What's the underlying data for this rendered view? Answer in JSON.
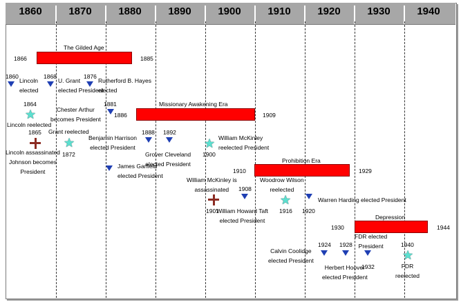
{
  "decades": [
    "1860",
    "1870",
    "1880",
    "1890",
    "1900",
    "1910",
    "1920",
    "1930",
    "1940"
  ],
  "eras": [
    {
      "title": "The Gilded Age",
      "start": "1866",
      "end": "1885"
    },
    {
      "title": "Missionary Awakening Era",
      "start": "1886",
      "end": "1909"
    },
    {
      "title": "Prohibition Era",
      "start": "1910",
      "end": "1929"
    },
    {
      "title": "Depression",
      "start": "1930",
      "end": "1944"
    }
  ],
  "events": {
    "lincoln_elected": {
      "year": "1860",
      "label": "Lincoln\nelected"
    },
    "grant_elected": {
      "year": "1868",
      "label": "U. Grant\nelected President"
    },
    "hayes_elected": {
      "year": "1876",
      "label": "Rutherford B. Hayes\nelected"
    },
    "lincoln_reelected": {
      "year": "1864",
      "label": "Lincoln reelected"
    },
    "arthur": {
      "year": "1881",
      "label": "Chester Arthur\nbecomes President"
    },
    "lincoln_assassinated": {
      "year": "1865",
      "label": "Lincoln assassinated\nJohnson becomes\nPresident"
    },
    "grant_reelected": {
      "year": "1872",
      "label": "Grant reelected"
    },
    "harrison": {
      "year": "1888",
      "label": "Benjamin Harrison\nelected President"
    },
    "cleveland": {
      "year": "1892",
      "label": "Grover Cleveland\nelected President"
    },
    "mckinley_reelected": {
      "year": "1900",
      "label": "William McKinley\nreelected President"
    },
    "garfield": {
      "label": "James Garfield\nelected President"
    },
    "mckinley_assassinated": {
      "year": "1901",
      "label": "William McKinley is\nassassinated"
    },
    "taft": {
      "year": "1908",
      "label": "William Howard Taft\nelected President"
    },
    "wilson_reelected": {
      "year": "1916",
      "label": "Woodrow Wilson\nreelected"
    },
    "harding": {
      "year": "1920",
      "label": "Warren Harding elected President"
    },
    "coolidge": {
      "year": "1924",
      "label": "Calvin Coolidge\nelected President"
    },
    "hoover": {
      "year": "1928",
      "label": "Herbert Hoover\nelected President"
    },
    "fdr_elected": {
      "year": "1932",
      "label": "FDR elected\nPresident"
    },
    "fdr_reelected": {
      "year": "1940",
      "label": "FDR\nreelected"
    }
  },
  "colors": {
    "era_bar": "#ff0000",
    "election_marker": "#1f3fb3",
    "reelection_marker": "#5ce0d0",
    "assassination_marker": "#8b2b22",
    "header": "#a7a7a7"
  }
}
